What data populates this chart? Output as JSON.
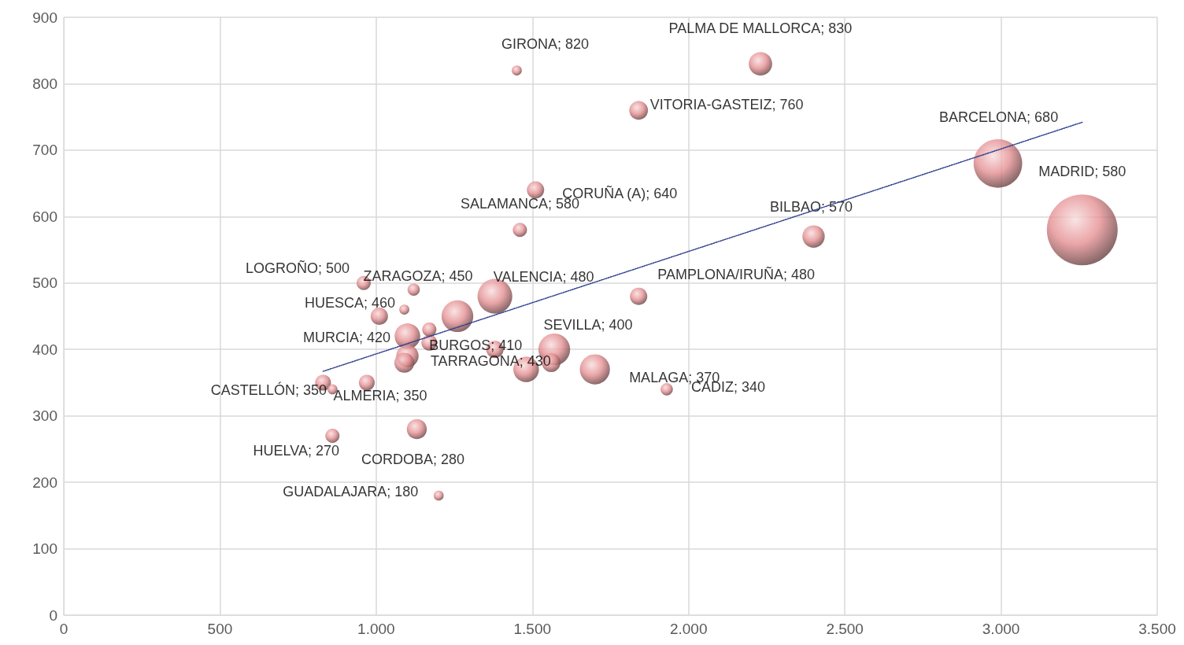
{
  "chart_data": {
    "type": "bubble",
    "xlim": [
      0,
      3500
    ],
    "ylim": [
      0,
      900
    ],
    "xticks": [
      0,
      {
        "value": 500,
        "label": "500"
      },
      {
        "value": 1000,
        "label": "1.000"
      },
      {
        "value": 1500,
        "label": "1.500"
      },
      {
        "value": 2000,
        "label": "2.000"
      },
      {
        "value": 2500,
        "label": "2.500"
      },
      {
        "value": 3000,
        "label": "3.000"
      },
      {
        "value": 3500,
        "label": "3.500"
      }
    ],
    "yticks": [
      0,
      100,
      200,
      300,
      400,
      500,
      600,
      700,
      800,
      900
    ],
    "grid": true,
    "series": [
      {
        "color": "#e58f92",
        "x": [
          1450,
          2230,
          1840,
          2990,
          3260,
          1510,
          1460,
          2400,
          960,
          1260,
          1380,
          1840,
          1090,
          1100,
          1570,
          1170,
          1170,
          1700,
          1930,
          830,
          970,
          860,
          1130,
          1200,
          1120,
          1010,
          1100,
          1090,
          1480,
          1560,
          1380,
          860
        ],
        "values": [
          820,
          830,
          760,
          680,
          580,
          640,
          580,
          570,
          500,
          450,
          480,
          480,
          460,
          420,
          400,
          410,
          430,
          370,
          340,
          350,
          350,
          270,
          280,
          180,
          490,
          450,
          390,
          380,
          370,
          380,
          400,
          340
        ],
        "sizes": [
          0.02,
          0.11,
          0.07,
          0.47,
          1,
          0.06,
          0.04,
          0.1,
          0.04,
          0.2,
          0.24,
          0.06,
          0.02,
          0.13,
          0.2,
          0.05,
          0.04,
          0.18,
          0.03,
          0.05,
          0.05,
          0.04,
          0.08,
          0.02,
          0.03,
          0.06,
          0.1,
          0.08,
          0.13,
          0.07,
          0.06,
          0.02
        ],
        "value_labels": [
          "GIRONA; 820",
          "PALMA DE MALLORCA; 830",
          "VITORIA-GASTEIZ; 760",
          "BARCELONA; 680",
          "MADRID; 580",
          "CORUÑA (A); 640",
          "SALAMANCA; 580",
          "BILBAO; 570",
          "LOGROÑO; 500",
          "ZARAGOZA; 450",
          "VALENCIA; 480",
          "PAMPLONA/IRUÑA; 480",
          "HUESCA; 460",
          "MURCIA; 420",
          "SEVILLA; 400",
          "BURGOS; 410",
          "TARRAGONA; 430",
          "MALAGA; 370",
          "CADIZ; 340",
          "CASTELLÓN; 350",
          "ALMERIA; 350",
          "HUELVA; 270",
          "CORDOBA; 280",
          "GUADALAJARA; 180",
          null,
          null,
          null,
          null,
          null,
          null,
          null,
          null
        ]
      },
      {
        "type": "line",
        "color": "#2f3f8f",
        "line_style": "dotted",
        "marker": "none",
        "x": [
          830,
          3260
        ],
        "values": [
          367,
          742
        ]
      }
    ]
  }
}
